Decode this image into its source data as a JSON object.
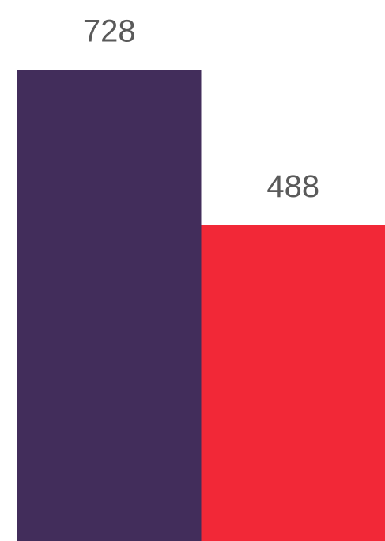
{
  "chart_data": {
    "type": "bar",
    "values": [
      728,
      488
    ],
    "colors": [
      "#422d5b",
      "#f22837"
    ]
  }
}
